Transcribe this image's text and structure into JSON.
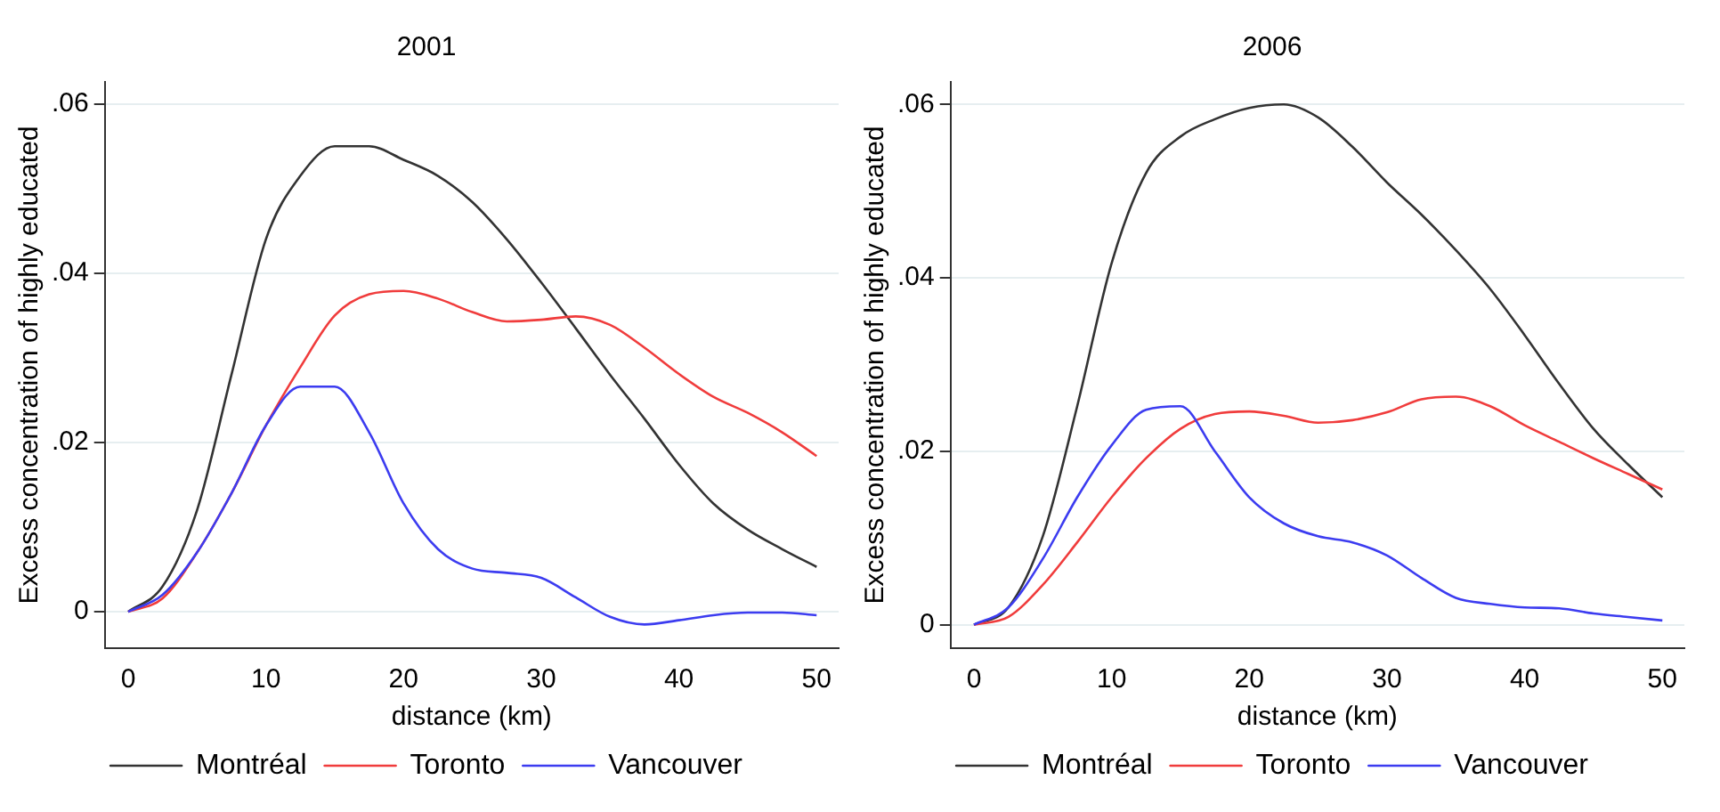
{
  "chart_data": [
    {
      "type": "line",
      "title": "2001",
      "xlabel": "distance (km)",
      "ylabel": "Excess concentration of highly educated",
      "x": [
        0,
        2.5,
        5,
        7.5,
        10,
        12.5,
        15,
        17.5,
        20,
        22.5,
        25,
        27.5,
        30,
        32.5,
        35,
        37.5,
        40,
        42.5,
        45,
        47.5,
        50
      ],
      "xlim": [
        -1.7,
        51.6
      ],
      "xticks": [
        0,
        10,
        20,
        30,
        40,
        50
      ],
      "ylim": [
        -0.0043,
        0.0626
      ],
      "yticks": [
        {
          "value": 0,
          "label": "0"
        },
        {
          "value": 0.02,
          "label": ".02"
        },
        {
          "value": 0.04,
          "label": ".04"
        },
        {
          "value": 0.06,
          "label": ".06"
        }
      ],
      "grid": "y",
      "legend": "bottom",
      "series": [
        {
          "name": "Montréal",
          "color": "#333333",
          "values": [
            0,
            0.003,
            0.012,
            0.028,
            0.044,
            0.0515,
            0.055,
            0.055,
            0.0534,
            0.0515,
            0.0484,
            0.044,
            0.0389,
            0.0335,
            0.028,
            0.0228,
            0.0174,
            0.0128,
            0.0097,
            0.0074,
            0.0053
          ]
        },
        {
          "name": "Toronto",
          "color": "#f03c3c",
          "values": [
            0,
            0.0016,
            0.007,
            0.014,
            0.022,
            0.0289,
            0.035,
            0.0375,
            0.0379,
            0.037,
            0.0354,
            0.0343,
            0.0345,
            0.0349,
            0.0339,
            0.0312,
            0.0281,
            0.0254,
            0.0235,
            0.0212,
            0.0184
          ]
        },
        {
          "name": "Vancouver",
          "color": "#3c3cf0",
          "values": [
            0,
            0.002,
            0.007,
            0.014,
            0.022,
            0.0266,
            0.0266,
            0.0212,
            0.0128,
            0.0074,
            0.0051,
            0.0046,
            0.004,
            0.0017,
            -0.0006,
            -0.0015,
            -0.001,
            -0.0004,
            -0.0001,
            -0.0001,
            -0.0004
          ]
        }
      ]
    },
    {
      "type": "line",
      "title": "2006",
      "xlabel": "distance (km)",
      "ylabel": "Excess concentration of highly educated",
      "x": [
        0,
        2.5,
        5,
        7.5,
        10,
        12.5,
        15,
        17.5,
        20,
        22.5,
        25,
        27.5,
        30,
        32.5,
        35,
        37.5,
        40,
        42.5,
        45,
        47.5,
        50
      ],
      "xlim": [
        -1.7,
        51.6
      ],
      "xticks": [
        0,
        10,
        20,
        30,
        40,
        50
      ],
      "ylim": [
        -0.0027,
        0.0626
      ],
      "yticks": [
        {
          "value": 0,
          "label": "0"
        },
        {
          "value": 0.02,
          "label": ".02"
        },
        {
          "value": 0.04,
          "label": ".04"
        },
        {
          "value": 0.06,
          "label": ".06"
        }
      ],
      "grid": "y",
      "legend": "bottom",
      "series": [
        {
          "name": "Montréal",
          "color": "#333333",
          "values": [
            0,
            0.002,
            0.0102,
            0.0252,
            0.0417,
            0.0521,
            0.0563,
            0.0583,
            0.0596,
            0.06,
            0.0585,
            0.0551,
            0.051,
            0.0473,
            0.0432,
            0.0387,
            0.0334,
            0.0278,
            0.0226,
            0.0185,
            0.0147
          ]
        },
        {
          "name": "Toronto",
          "color": "#f03c3c",
          "values": [
            0,
            0.0009,
            0.0046,
            0.0095,
            0.0147,
            0.0192,
            0.0226,
            0.0243,
            0.0246,
            0.0241,
            0.0233,
            0.0236,
            0.0245,
            0.026,
            0.0263,
            0.0252,
            0.023,
            0.0211,
            0.0192,
            0.0174,
            0.0156
          ]
        },
        {
          "name": "Vancouver",
          "color": "#3c3cf0",
          "values": [
            0,
            0.002,
            0.0076,
            0.0147,
            0.0207,
            0.0248,
            0.0252,
            0.02,
            0.0147,
            0.0117,
            0.0102,
            0.0095,
            0.008,
            0.0054,
            0.0031,
            0.0024,
            0.002,
            0.0019,
            0.0013,
            0.0009,
            0.0005
          ]
        }
      ]
    }
  ]
}
